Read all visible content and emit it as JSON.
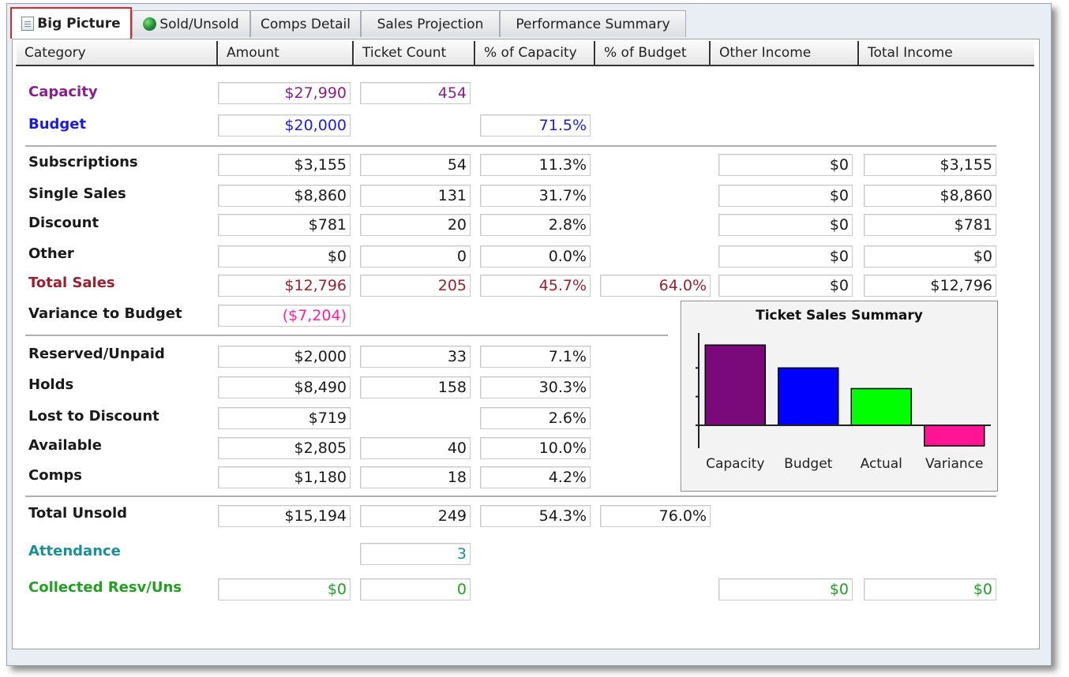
{
  "tabs": [
    {
      "label": "Big Picture",
      "icon": "document-icon",
      "active": true
    },
    {
      "label": "Sold/Unsold",
      "icon": "globe-icon",
      "active": false
    },
    {
      "label": "Comps Detail",
      "active": false
    },
    {
      "label": "Sales Projection",
      "active": false
    },
    {
      "label": "Performance Summary",
      "active": false
    }
  ],
  "columns": [
    "Category",
    "Amount",
    "Ticket  Count",
    "% of Capacity",
    "% of Budget",
    "Other Income",
    "Total Income"
  ],
  "rows": {
    "capacity": {
      "label": "Capacity",
      "amount": "$27,990",
      "count": "454"
    },
    "budget": {
      "label": "Budget",
      "amount": "$20,000",
      "pct_capacity": "71.5%"
    },
    "subscriptions": {
      "label": "Subscriptions",
      "amount": "$3,155",
      "count": "54",
      "pct_capacity": "11.3%",
      "other_income": "$0",
      "total_income": "$3,155"
    },
    "single_sales": {
      "label": "Single Sales",
      "amount": "$8,860",
      "count": "131",
      "pct_capacity": "31.7%",
      "other_income": "$0",
      "total_income": "$8,860"
    },
    "discount": {
      "label": "Discount",
      "amount": "$781",
      "count": "20",
      "pct_capacity": "2.8%",
      "other_income": "$0",
      "total_income": "$781"
    },
    "other": {
      "label": "Other",
      "amount": "$0",
      "count": "0",
      "pct_capacity": "0.0%",
      "other_income": "$0",
      "total_income": "$0"
    },
    "total_sales": {
      "label": "Total Sales",
      "amount": "$12,796",
      "count": "205",
      "pct_capacity": "45.7%",
      "pct_budget": "64.0%",
      "other_income": "$0",
      "total_income": "$12,796"
    },
    "variance": {
      "label": "Variance to Budget",
      "amount": "($7,204)"
    },
    "reserved": {
      "label": "Reserved/Unpaid",
      "amount": "$2,000",
      "count": "33",
      "pct_capacity": "7.1%"
    },
    "holds": {
      "label": "Holds",
      "amount": "$8,490",
      "count": "158",
      "pct_capacity": "30.3%"
    },
    "lost_discount": {
      "label": "Lost to Discount",
      "amount": "$719",
      "pct_capacity": "2.6%"
    },
    "available": {
      "label": "Available",
      "amount": "$2,805",
      "count": "40",
      "pct_capacity": "10.0%"
    },
    "comps": {
      "label": "Comps",
      "amount": "$1,180",
      "count": "18",
      "pct_capacity": "4.2%"
    },
    "total_unsold": {
      "label": "Total Unsold",
      "amount": "$15,194",
      "count": "249",
      "pct_capacity": "54.3%",
      "pct_budget": "76.0%"
    },
    "attendance": {
      "label": "Attendance",
      "count": "3"
    },
    "collected": {
      "label": "Collected Resv/Uns",
      "amount": "$0",
      "count": "0",
      "other_income": "$0",
      "total_income": "$0"
    }
  },
  "colors": {
    "capacity": "#8b1e8b",
    "budget": "#1c1ce0",
    "total_sales": "#9a2030",
    "variance": "#ff1fa0",
    "attendance": "#1a8f99",
    "collected": "#21a021"
  },
  "chart_data": {
    "type": "bar",
    "title": "Ticket Sales Summary",
    "categories": [
      "Capacity",
      "Budget",
      "Actual",
      "Variance"
    ],
    "values": [
      27990,
      20000,
      12796,
      -7204
    ],
    "colors": [
      "#7a0a7a",
      "#0000ff",
      "#00ff00",
      "#ff1493"
    ],
    "ylim": [
      -8000,
      30000
    ],
    "grid": false,
    "legend": "none"
  }
}
